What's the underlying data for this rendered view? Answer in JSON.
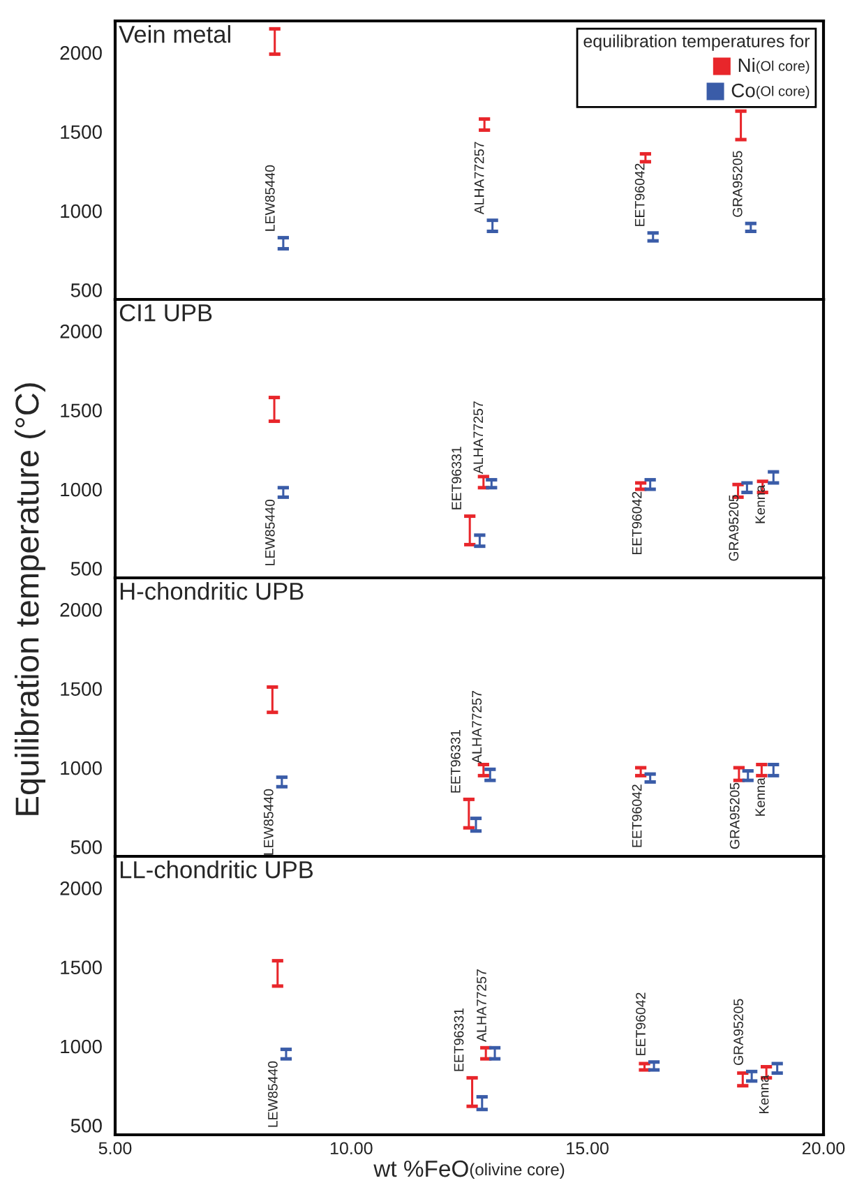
{
  "chart_data": [
    {
      "type": "bar",
      "title": "Vein metal",
      "ylabel": "Equilibration temperature (°C)",
      "legend_title": "equilibration temperatures for",
      "legend": "top right",
      "grid": false,
      "tick_labels": "y",
      "xlim": [
        5,
        20
      ],
      "xticks": [
        {
          "value": 5,
          "label": null
        },
        {
          "value": 10,
          "label": null
        },
        {
          "value": 15,
          "label": null
        },
        {
          "value": 20,
          "label": null
        }
      ],
      "ylim": [
        440,
        2200
      ],
      "yticks": [
        500,
        1000,
        1500,
        2000
      ],
      "series": [
        {
          "name": "Ni$_{(Ol core)}$",
          "color": "#e8262b",
          "x": [
            8.38,
            12.82,
            16.23,
            18.25
          ],
          "base": [
            1990,
            1510,
            1310,
            1450
          ],
          "values": [
            160,
            70,
            50,
            180
          ]
        },
        {
          "name": "Co$_{(Ol core)}$",
          "color": "#3a5ca8",
          "x": [
            8.56,
            12.99,
            16.39,
            18.46
          ],
          "base": [
            760,
            870,
            810,
            870
          ],
          "values": [
            70,
            70,
            50,
            50
          ]
        }
      ],
      "annotations": [
        {
          "text": "LEW85440",
          "x": 8.56,
          "y": 830
        },
        {
          "text": "ALHA77257",
          "x": 12.99,
          "y": 940
        },
        {
          "text": "EET96042",
          "x": 16.39,
          "y": 860
        },
        {
          "text": "GRA95205",
          "x": 18.46,
          "y": 920
        }
      ]
    },
    {
      "type": "bar",
      "title": "CI1 UPB",
      "grid": false,
      "tick_labels": "y",
      "xlim": [
        5,
        20
      ],
      "xticks": [
        {
          "value": 5,
          "label": null
        },
        {
          "value": 10,
          "label": null
        },
        {
          "value": 15,
          "label": null
        },
        {
          "value": 20,
          "label": null
        }
      ],
      "ylim": [
        440,
        2200
      ],
      "yticks": [
        500,
        1000,
        1500,
        2000
      ],
      "series": [
        {
          "color": "#e8262b",
          "x": [
            8.37,
            12.51,
            12.8,
            16.13,
            18.19,
            18.71
          ],
          "base": [
            1430,
            650,
            1010,
            1000,
            950,
            980
          ],
          "values": [
            150,
            180,
            70,
            40,
            80,
            70
          ]
        },
        {
          "color": "#3a5ca8",
          "x": [
            8.56,
            12.72,
            12.97,
            16.33,
            18.38,
            18.94
          ],
          "base": [
            950,
            640,
            1010,
            1000,
            980,
            1040
          ],
          "values": [
            60,
            70,
            50,
            60,
            60,
            70
          ]
        }
      ],
      "annotations": [
        {
          "text": "LEW85440",
          "x": 8.56,
          "y": 950
        },
        {
          "text": "EET96331",
          "x": 12.51,
          "y": 830
        },
        {
          "text": "ALHA77257",
          "x": 12.97,
          "y": 1060
        },
        {
          "text": "EET96042",
          "x": 16.33,
          "y": 1000
        },
        {
          "text": "GRA95205",
          "x": 18.38,
          "y": 980
        },
        {
          "text": "Kenna",
          "x": 18.94,
          "y": 1040
        }
      ]
    },
    {
      "type": "bar",
      "title": "H-chondritic UPB",
      "grid": false,
      "tick_labels": "y",
      "xlim": [
        5,
        20
      ],
      "xticks": [
        {
          "value": 5,
          "label": null
        },
        {
          "value": 10,
          "label": null
        },
        {
          "value": 15,
          "label": null
        },
        {
          "value": 20,
          "label": null
        }
      ],
      "ylim": [
        440,
        2200
      ],
      "yticks": [
        500,
        1000,
        1500,
        2000
      ],
      "series": [
        {
          "color": "#e8262b",
          "x": [
            8.33,
            12.49,
            12.8,
            16.13,
            18.21,
            18.69
          ],
          "base": [
            1350,
            620,
            950,
            950,
            920,
            950
          ],
          "values": [
            160,
            180,
            70,
            50,
            80,
            70
          ]
        },
        {
          "color": "#3a5ca8",
          "x": [
            8.53,
            12.64,
            12.94,
            16.33,
            18.4,
            18.94
          ],
          "base": [
            880,
            600,
            920,
            910,
            920,
            950
          ],
          "values": [
            60,
            80,
            70,
            50,
            60,
            70
          ]
        }
      ],
      "annotations": [
        {
          "text": "LEW85440",
          "x": 8.53,
          "y": 880
        },
        {
          "text": "EET96331",
          "x": 12.49,
          "y": 800
        },
        {
          "text": "ALHA77257",
          "x": 12.94,
          "y": 990
        },
        {
          "text": "EET96042",
          "x": 16.33,
          "y": 910
        },
        {
          "text": "GRA95205",
          "x": 18.4,
          "y": 920
        },
        {
          "text": "Kenna",
          "x": 18.94,
          "y": 950
        }
      ]
    },
    {
      "type": "bar",
      "title": "LL-chondritic UPB",
      "xlabel": "wt %FeO$_{(olivine core)}$",
      "grid": false,
      "xlim": [
        5,
        20
      ],
      "xticks": [
        {
          "value": 5,
          "label": "5.00"
        },
        {
          "value": 10,
          "label": "10.00"
        },
        {
          "value": 15,
          "label": "15.00"
        },
        {
          "value": 20,
          "label": "20.00"
        }
      ],
      "ylim": [
        440,
        2200
      ],
      "yticks": [
        500,
        1000,
        1500,
        2000
      ],
      "series": [
        {
          "color": "#e8262b",
          "x": [
            8.44,
            12.56,
            12.85,
            16.21,
            18.29,
            18.79
          ],
          "base": [
            1380,
            620,
            920,
            850,
            750,
            800
          ],
          "values": [
            160,
            180,
            70,
            40,
            80,
            70
          ]
        },
        {
          "color": "#3a5ca8",
          "x": [
            8.62,
            12.77,
            13.04,
            16.41,
            18.48,
            19.02
          ],
          "base": [
            920,
            600,
            920,
            850,
            780,
            830
          ],
          "values": [
            60,
            80,
            70,
            50,
            60,
            60
          ]
        }
      ],
      "annotations": [
        {
          "text": "LEW85440",
          "x": 8.62,
          "y": 920
        },
        {
          "text": "EET96331",
          "x": 12.56,
          "y": 800
        },
        {
          "text": "ALHA77257",
          "x": 13.04,
          "y": 990
        },
        {
          "text": "EET96042",
          "x": 16.41,
          "y": 900
        },
        {
          "text": "GRA95205",
          "x": 18.48,
          "y": 840
        },
        {
          "text": "Kenna",
          "x": 19.02,
          "y": 830
        }
      ]
    }
  ]
}
